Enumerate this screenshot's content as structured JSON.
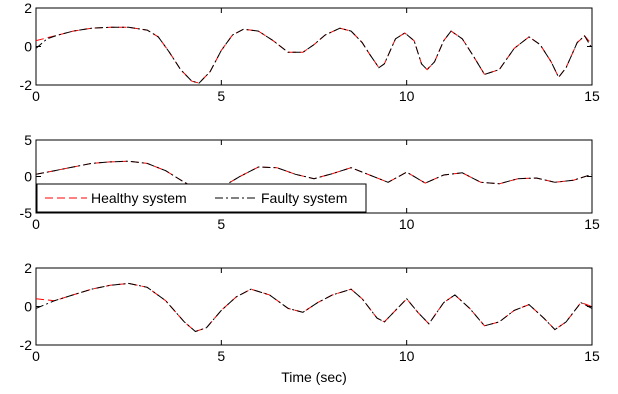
{
  "chart_data": [
    {
      "type": "line",
      "xlim": [
        0,
        15
      ],
      "ylim": [
        -2,
        2
      ],
      "xticks": [
        0,
        5,
        10,
        15
      ],
      "yticks": [
        -2,
        0,
        2
      ],
      "xlabel": "",
      "ylabel": "",
      "grid": false,
      "series": [
        {
          "name": "Healthy system",
          "color": "#ff0000",
          "style": "dashed",
          "x": [
            0,
            0.3,
            0.6,
            1.0,
            1.5,
            2.0,
            2.5,
            3.0,
            3.3,
            3.6,
            3.9,
            4.2,
            4.4,
            4.7,
            5.0,
            5.3,
            5.6,
            6.0,
            6.4,
            6.8,
            7.2,
            7.5,
            7.8,
            8.2,
            8.5,
            8.8,
            9.0,
            9.25,
            9.4,
            9.7,
            9.95,
            10.2,
            10.4,
            10.55,
            10.75,
            11.0,
            11.2,
            11.5,
            11.8,
            12.1,
            12.5,
            12.9,
            13.3,
            13.6,
            13.9,
            14.1,
            14.3,
            14.6,
            14.8,
            15.0
          ],
          "y": [
            0.3,
            0.45,
            0.6,
            0.8,
            0.95,
            1.0,
            1.0,
            0.85,
            0.5,
            -0.3,
            -1.2,
            -1.8,
            -1.9,
            -1.3,
            -0.2,
            0.6,
            0.9,
            0.8,
            0.3,
            -0.3,
            -0.3,
            0.1,
            0.6,
            0.95,
            0.8,
            0.2,
            -0.4,
            -1.1,
            -0.9,
            0.4,
            0.7,
            0.3,
            -0.9,
            -1.2,
            -0.8,
            0.3,
            0.8,
            0.4,
            -0.5,
            -1.45,
            -1.2,
            -0.1,
            0.5,
            0.1,
            -0.8,
            -1.6,
            -1.1,
            0.2,
            0.55,
            0.1
          ]
        },
        {
          "name": "Faulty system",
          "color": "#000000",
          "style": "dashdot",
          "x": [
            0,
            0.3,
            0.6,
            1.0,
            1.5,
            2.0,
            2.5,
            3.0,
            3.3,
            3.6,
            3.9,
            4.2,
            4.4,
            4.7,
            5.0,
            5.3,
            5.6,
            6.0,
            6.4,
            6.8,
            7.2,
            7.5,
            7.8,
            8.2,
            8.5,
            8.8,
            9.0,
            9.25,
            9.4,
            9.7,
            9.95,
            10.2,
            10.4,
            10.55,
            10.75,
            11.0,
            11.2,
            11.5,
            11.8,
            12.1,
            12.5,
            12.9,
            13.3,
            13.6,
            13.9,
            14.1,
            14.3,
            14.6,
            14.8,
            15.0
          ],
          "y": [
            -0.1,
            0.4,
            0.6,
            0.8,
            0.95,
            1.0,
            1.0,
            0.85,
            0.5,
            -0.3,
            -1.2,
            -1.8,
            -1.9,
            -1.3,
            -0.2,
            0.6,
            0.9,
            0.8,
            0.3,
            -0.3,
            -0.3,
            0.1,
            0.6,
            0.95,
            0.8,
            0.2,
            -0.4,
            -1.1,
            -0.9,
            0.4,
            0.7,
            0.3,
            -0.9,
            -1.2,
            -0.8,
            0.3,
            0.8,
            0.4,
            -0.5,
            -1.45,
            -1.2,
            -0.1,
            0.5,
            0.1,
            -0.8,
            -1.6,
            -1.1,
            0.2,
            0.55,
            -0.1
          ]
        }
      ]
    },
    {
      "type": "line",
      "xlim": [
        0,
        15
      ],
      "ylim": [
        -5,
        5
      ],
      "xticks": [
        0,
        5,
        10,
        15
      ],
      "yticks": [
        -5,
        0,
        5
      ],
      "xlabel": "",
      "ylabel": "",
      "grid": false,
      "legend": {
        "placement": "bottom-left",
        "entries": [
          "Healthy system",
          "Faulty system"
        ]
      },
      "series": [
        {
          "name": "Healthy system",
          "color": "#ff0000",
          "style": "dashed",
          "x": [
            0,
            0.5,
            1.0,
            1.5,
            2.0,
            2.5,
            3.0,
            3.5,
            4.0,
            4.5,
            5.0,
            5.5,
            6.0,
            6.5,
            7.0,
            7.5,
            8.0,
            8.5,
            9.0,
            9.5,
            10.0,
            10.5,
            11.0,
            11.5,
            12.0,
            12.5,
            13.0,
            13.5,
            14.0,
            14.5,
            15.0
          ],
          "y": [
            0.3,
            0.8,
            1.3,
            1.8,
            2.0,
            2.1,
            1.8,
            0.8,
            -0.8,
            -2.0,
            -1.5,
            0.0,
            1.3,
            1.2,
            0.3,
            -0.3,
            0.4,
            1.2,
            0.2,
            -0.8,
            0.6,
            -0.9,
            0.2,
            0.5,
            -0.8,
            -1.0,
            -0.3,
            -0.2,
            -0.8,
            -0.5,
            0.3
          ]
        },
        {
          "name": "Faulty system",
          "color": "#000000",
          "style": "dashdot",
          "x": [
            0,
            0.5,
            1.0,
            1.5,
            2.0,
            2.5,
            3.0,
            3.5,
            4.0,
            4.5,
            5.0,
            5.5,
            6.0,
            6.5,
            7.0,
            7.5,
            8.0,
            8.5,
            9.0,
            9.5,
            10.0,
            10.5,
            11.0,
            11.5,
            12.0,
            12.5,
            13.0,
            13.5,
            14.0,
            14.5,
            15.0
          ],
          "y": [
            0.3,
            0.8,
            1.3,
            1.8,
            2.0,
            2.1,
            1.8,
            0.8,
            -0.8,
            -2.0,
            -1.5,
            0.0,
            1.3,
            1.2,
            0.3,
            -0.3,
            0.4,
            1.2,
            0.2,
            -0.8,
            0.6,
            -0.9,
            0.2,
            0.5,
            -0.8,
            -1.0,
            -0.3,
            -0.2,
            -0.8,
            -0.5,
            0.3
          ]
        }
      ]
    },
    {
      "type": "line",
      "xlim": [
        0,
        15
      ],
      "ylim": [
        -2,
        2
      ],
      "xticks": [
        0,
        5,
        10,
        15
      ],
      "yticks": [
        -2,
        0,
        2
      ],
      "xlabel": "Time (sec)",
      "ylabel": "",
      "grid": false,
      "series": [
        {
          "name": "Healthy system",
          "color": "#ff0000",
          "style": "dashed",
          "x": [
            0,
            0.5,
            1.0,
            1.5,
            2.0,
            2.5,
            3.0,
            3.5,
            4.0,
            4.3,
            4.6,
            5.0,
            5.4,
            5.8,
            6.3,
            6.8,
            7.2,
            7.6,
            8.0,
            8.5,
            8.8,
            9.2,
            9.4,
            9.7,
            10.0,
            10.3,
            10.6,
            11.0,
            11.3,
            11.7,
            12.1,
            12.5,
            12.9,
            13.3,
            13.7,
            14.0,
            14.3,
            14.7,
            15.0
          ],
          "y": [
            0.4,
            0.3,
            0.6,
            0.9,
            1.1,
            1.2,
            1.0,
            0.3,
            -0.8,
            -1.3,
            -1.1,
            -0.2,
            0.5,
            0.9,
            0.6,
            -0.1,
            -0.3,
            0.2,
            0.6,
            0.9,
            0.4,
            -0.6,
            -0.8,
            -0.2,
            0.4,
            -0.3,
            -0.9,
            0.2,
            0.6,
            -0.1,
            -1.0,
            -0.8,
            -0.2,
            0.1,
            -0.6,
            -1.2,
            -0.8,
            0.2,
            0.0
          ]
        },
        {
          "name": "Faulty system",
          "color": "#000000",
          "style": "dashdot",
          "x": [
            0,
            0.5,
            1.0,
            1.5,
            2.0,
            2.5,
            3.0,
            3.5,
            4.0,
            4.3,
            4.6,
            5.0,
            5.4,
            5.8,
            6.3,
            6.8,
            7.2,
            7.6,
            8.0,
            8.5,
            8.8,
            9.2,
            9.4,
            9.7,
            10.0,
            10.3,
            10.6,
            11.0,
            11.3,
            11.7,
            12.1,
            12.5,
            12.9,
            13.3,
            13.7,
            14.0,
            14.3,
            14.7,
            15.0
          ],
          "y": [
            -0.1,
            0.3,
            0.6,
            0.9,
            1.1,
            1.2,
            1.0,
            0.3,
            -0.8,
            -1.3,
            -1.1,
            -0.2,
            0.5,
            0.9,
            0.6,
            -0.1,
            -0.3,
            0.2,
            0.6,
            0.9,
            0.4,
            -0.6,
            -0.8,
            -0.2,
            0.4,
            -0.3,
            -0.9,
            0.2,
            0.6,
            -0.1,
            -1.0,
            -0.8,
            -0.2,
            0.1,
            -0.6,
            -1.2,
            -0.8,
            0.2,
            -0.1
          ]
        }
      ]
    }
  ]
}
